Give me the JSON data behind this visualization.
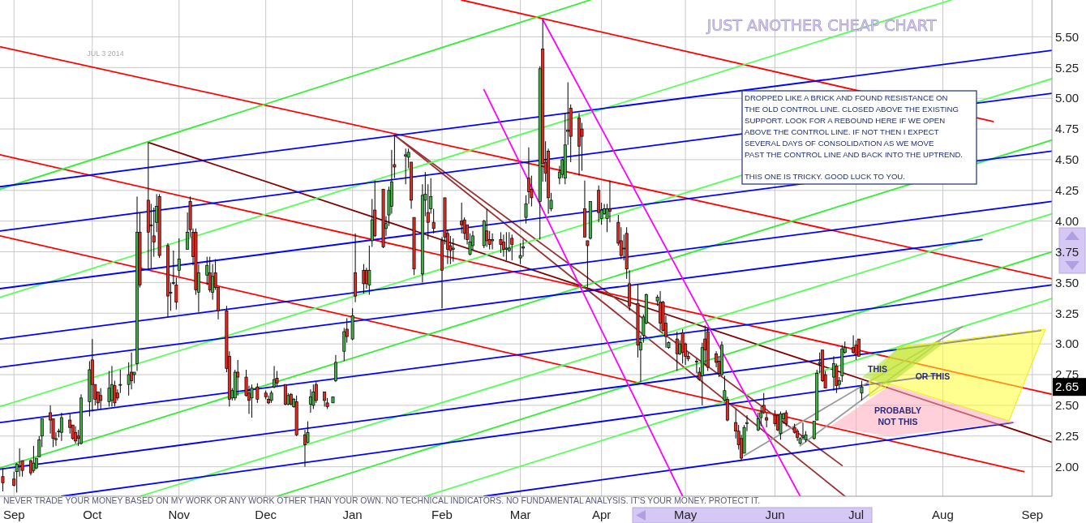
{
  "chart_data": {
    "type": "candlestick",
    "title": "JUST ANOTHER CHEAP CHART",
    "subtitle": "JUL 3 2014",
    "x": [
      "2013-08-30",
      "2013-09-03",
      "2013-09-04",
      "2013-09-05",
      "2013-09-06",
      "2013-09-09",
      "2013-09-10",
      "2013-09-11",
      "2013-09-12",
      "2013-09-13",
      "2013-09-16",
      "2013-09-17",
      "2013-09-18",
      "2013-09-19",
      "2013-09-20",
      "2013-09-23",
      "2013-09-24",
      "2013-09-25",
      "2013-09-26",
      "2013-09-27",
      "2013-09-30",
      "2013-10-01",
      "2013-10-02",
      "2013-10-03",
      "2013-10-04",
      "2013-10-07",
      "2013-10-08",
      "2013-10-09",
      "2013-10-10",
      "2013-10-11",
      "2013-10-14",
      "2013-10-15",
      "2013-10-16",
      "2013-10-17",
      "2013-10-18",
      "2013-10-21",
      "2013-10-22",
      "2013-10-23",
      "2013-10-24",
      "2013-10-25",
      "2013-10-28",
      "2013-10-29",
      "2013-10-30",
      "2013-10-31",
      "2013-11-01",
      "2013-11-04",
      "2013-11-05",
      "2013-11-06",
      "2013-11-07",
      "2013-11-08",
      "2013-11-11",
      "2013-11-12",
      "2013-11-13",
      "2013-11-14",
      "2013-11-15",
      "2013-11-18",
      "2013-11-19",
      "2013-11-20",
      "2013-11-21",
      "2013-11-22",
      "2013-11-25",
      "2013-11-26",
      "2013-11-27",
      "2013-11-29",
      "2013-12-02",
      "2013-12-03",
      "2013-12-04",
      "2013-12-05",
      "2013-12-06",
      "2013-12-09",
      "2013-12-10",
      "2013-12-11",
      "2013-12-12",
      "2013-12-13",
      "2013-12-16",
      "2013-12-17",
      "2013-12-18",
      "2013-12-19",
      "2013-12-20",
      "2013-12-23",
      "2013-12-24",
      "2013-12-26",
      "2013-12-27",
      "2013-12-30",
      "2013-12-31",
      "2014-01-02",
      "2014-01-03",
      "2014-01-06",
      "2014-01-07",
      "2014-01-08",
      "2014-01-09",
      "2014-01-10",
      "2014-01-13",
      "2014-01-14",
      "2014-01-15",
      "2014-01-16",
      "2014-01-17",
      "2014-01-21",
      "2014-01-22",
      "2014-01-23",
      "2014-01-24",
      "2014-01-27",
      "2014-01-28",
      "2014-01-29",
      "2014-01-30",
      "2014-01-31",
      "2014-02-03",
      "2014-02-04",
      "2014-02-05",
      "2014-02-06",
      "2014-02-07",
      "2014-02-10",
      "2014-02-11",
      "2014-02-12",
      "2014-02-13",
      "2014-02-14",
      "2014-02-18",
      "2014-02-19",
      "2014-02-20",
      "2014-02-21",
      "2014-02-24",
      "2014-02-25",
      "2014-02-26",
      "2014-02-27",
      "2014-02-28",
      "2014-03-03",
      "2014-03-04",
      "2014-03-05",
      "2014-03-06",
      "2014-03-07",
      "2014-03-10",
      "2014-03-11",
      "2014-03-12",
      "2014-03-13",
      "2014-03-14",
      "2014-03-17",
      "2014-03-18",
      "2014-03-19",
      "2014-03-20",
      "2014-03-21",
      "2014-03-24",
      "2014-03-25",
      "2014-03-26",
      "2014-03-27",
      "2014-03-28",
      "2014-03-31",
      "2014-04-01",
      "2014-04-02",
      "2014-04-03",
      "2014-04-04",
      "2014-04-07",
      "2014-04-08",
      "2014-04-09",
      "2014-04-10",
      "2014-04-11",
      "2014-04-14",
      "2014-04-15",
      "2014-04-16",
      "2014-04-17",
      "2014-04-21",
      "2014-04-22",
      "2014-04-23",
      "2014-04-24",
      "2014-04-25",
      "2014-04-28",
      "2014-04-29",
      "2014-04-30",
      "2014-05-01",
      "2014-05-02",
      "2014-05-05",
      "2014-05-06",
      "2014-05-07",
      "2014-05-08",
      "2014-05-09",
      "2014-05-12",
      "2014-05-13",
      "2014-05-14",
      "2014-05-15",
      "2014-05-16",
      "2014-05-19",
      "2014-05-20",
      "2014-05-21",
      "2014-05-22",
      "2014-05-23",
      "2014-05-27",
      "2014-05-28",
      "2014-05-29",
      "2014-05-30",
      "2014-06-02",
      "2014-06-03",
      "2014-06-04",
      "2014-06-05",
      "2014-06-06",
      "2014-06-09",
      "2014-06-10",
      "2014-06-11",
      "2014-06-12",
      "2014-06-13",
      "2014-06-16",
      "2014-06-17",
      "2014-06-18",
      "2014-06-19",
      "2014-06-20",
      "2014-06-23",
      "2014-06-24",
      "2014-06-25",
      "2014-06-26",
      "2014-06-27",
      "2014-06-30",
      "2014-07-01",
      "2014-07-02",
      "2014-07-03"
    ],
    "ohlc": [
      [
        1.92,
        1.99,
        1.8,
        1.87
      ],
      [
        1.9,
        1.96,
        1.84,
        1.85
      ],
      [
        1.96,
        2.03,
        1.79,
        2.02
      ],
      [
        2.0,
        2.15,
        1.92,
        2.01
      ],
      [
        2.05,
        2.05,
        1.92,
        1.97
      ],
      [
        2.05,
        2.06,
        1.93,
        1.95
      ],
      [
        1.97,
        2.17,
        1.95,
        2.03
      ],
      [
        1.99,
        2.07,
        1.98,
        2.07
      ],
      [
        2.08,
        2.25,
        2.08,
        2.22
      ],
      [
        2.25,
        2.39,
        2.16,
        2.39
      ],
      [
        2.44,
        2.5,
        2.27,
        2.38
      ],
      [
        2.39,
        2.39,
        2.16,
        2.23
      ],
      [
        2.22,
        2.28,
        2.17,
        2.23
      ],
      [
        2.29,
        2.31,
        2.24,
        2.29
      ],
      [
        2.28,
        2.44,
        2.21,
        2.4
      ],
      [
        2.38,
        2.43,
        2.27,
        2.32
      ],
      [
        2.34,
        2.34,
        2.22,
        2.23
      ],
      [
        2.28,
        2.33,
        2.19,
        2.21
      ],
      [
        2.25,
        2.3,
        2.17,
        2.23
      ],
      [
        2.19,
        2.59,
        2.18,
        2.56
      ],
      [
        2.53,
        2.86,
        2.41,
        2.79
      ],
      [
        2.87,
        3.04,
        2.45,
        2.67
      ],
      [
        2.67,
        2.67,
        2.5,
        2.55
      ],
      [
        2.61,
        2.61,
        2.47,
        2.52
      ],
      [
        2.58,
        2.64,
        2.47,
        2.54
      ],
      [
        2.53,
        2.78,
        2.49,
        2.64
      ],
      [
        2.54,
        2.82,
        2.49,
        2.67
      ],
      [
        2.66,
        2.7,
        2.49,
        2.52
      ],
      [
        2.6,
        2.63,
        2.54,
        2.56
      ],
      [
        2.67,
        2.79,
        2.6,
        2.67
      ],
      [
        2.67,
        2.85,
        2.58,
        2.75
      ],
      [
        2.77,
        2.93,
        2.63,
        2.7
      ],
      [
        2.75,
        2.77,
        2.68,
        2.77
      ],
      [
        2.84,
        4.2,
        2.78,
        3.91
      ],
      [
        3.91,
        4.07,
        3.46,
        3.48
      ],
      [
        4.17,
        4.64,
        3.61,
        3.91
      ],
      [
        3.97,
        4.14,
        3.61,
        3.96
      ],
      [
        3.88,
        4.11,
        3.71,
        3.83
      ],
      [
        3.99,
        4.22,
        3.91,
        4.12
      ],
      [
        4.2,
        4.22,
        3.7,
        3.72
      ],
      [
        3.8,
        3.82,
        3.22,
        3.39
      ],
      [
        3.42,
        3.5,
        3.27,
        3.42
      ],
      [
        3.5,
        3.76,
        3.48,
        3.5
      ],
      [
        3.48,
        3.54,
        3.28,
        3.34
      ],
      [
        3.6,
        3.86,
        3.55,
        3.69
      ],
      [
        3.77,
        4.07,
        3.77,
        3.91
      ],
      [
        4.16,
        4.2,
        3.87,
        3.93
      ],
      [
        3.91,
        3.94,
        3.64,
        3.71
      ],
      [
        3.91,
        3.94,
        3.4,
        3.44
      ],
      [
        3.42,
        3.65,
        3.26,
        3.58
      ],
      [
        3.56,
        3.71,
        3.48,
        3.64
      ],
      [
        3.58,
        3.71,
        3.42,
        3.44
      ],
      [
        3.42,
        3.65,
        3.36,
        3.55
      ],
      [
        3.58,
        3.69,
        3.44,
        3.46
      ],
      [
        3.46,
        3.46,
        3.2,
        3.27
      ],
      [
        3.27,
        3.31,
        2.77,
        2.8
      ],
      [
        2.9,
        2.94,
        2.49,
        2.55
      ],
      [
        2.56,
        2.64,
        2.54,
        2.62
      ],
      [
        2.56,
        2.79,
        2.54,
        2.77
      ],
      [
        2.77,
        2.87,
        2.58,
        2.73
      ],
      [
        2.73,
        2.79,
        2.57,
        2.58
      ],
      [
        2.6,
        2.66,
        2.43,
        2.54
      ],
      [
        2.56,
        2.67,
        2.4,
        2.64
      ],
      [
        2.65,
        2.68,
        2.52,
        2.55
      ],
      [
        2.6,
        2.62,
        2.55,
        2.57
      ],
      [
        2.55,
        2.58,
        2.51,
        2.52
      ],
      [
        2.54,
        2.62,
        2.52,
        2.6
      ],
      [
        2.65,
        2.82,
        2.64,
        2.71
      ],
      [
        2.72,
        2.78,
        2.65,
        2.68
      ],
      [
        2.67,
        2.67,
        2.5,
        2.51
      ],
      [
        2.51,
        2.6,
        2.5,
        2.58
      ],
      [
        2.59,
        2.6,
        2.5,
        2.51
      ],
      [
        2.49,
        2.56,
        2.48,
        2.55
      ],
      [
        2.53,
        2.58,
        2.25,
        2.26
      ],
      [
        2.26,
        2.3,
        2.0,
        2.18
      ],
      [
        2.2,
        2.37,
        2.19,
        2.28
      ],
      [
        2.51,
        2.63,
        2.44,
        2.57
      ],
      [
        2.5,
        2.67,
        2.47,
        2.61
      ],
      [
        2.67,
        2.69,
        2.52,
        2.54
      ],
      [
        2.61,
        2.61,
        2.49,
        2.54
      ],
      [
        2.52,
        2.56,
        2.47,
        2.49
      ],
      [
        2.52,
        2.57,
        2.52,
        2.57
      ],
      [
        2.7,
        2.91,
        2.69,
        2.85
      ],
      [
        2.94,
        3.13,
        2.86,
        3.1
      ],
      [
        3.12,
        3.21,
        3.01,
        3.06
      ],
      [
        3.04,
        3.29,
        3.03,
        3.23
      ],
      [
        3.58,
        3.9,
        3.34,
        3.39
      ],
      [
        3.6,
        3.65,
        3.41,
        3.49
      ],
      [
        3.6,
        3.62,
        3.45,
        3.49
      ],
      [
        3.48,
        3.8,
        3.4,
        3.6
      ],
      [
        3.84,
        4.18,
        3.79,
        4.01
      ],
      [
        4.09,
        4.33,
        3.87,
        3.88
      ],
      [
        4.26,
        4.26,
        3.78,
        3.79
      ],
      [
        3.94,
        4.04,
        3.88,
        3.98
      ],
      [
        4.05,
        4.28,
        3.96,
        4.25
      ],
      [
        4.12,
        4.58,
        4.06,
        4.32
      ],
      [
        4.46,
        4.7,
        4.35,
        4.44
      ],
      [
        4.53,
        4.59,
        4.3,
        4.54
      ],
      [
        4.52,
        4.59,
        4.43,
        4.56
      ],
      [
        4.48,
        4.48,
        4.1,
        4.17
      ],
      [
        4.03,
        4.03,
        3.56,
        3.61
      ],
      [
        3.57,
        4.3,
        3.5,
        4.21
      ],
      [
        4.17,
        4.4,
        4.04,
        4.22
      ],
      [
        4.07,
        4.3,
        3.85,
        3.99
      ],
      [
        4.1,
        4.35,
        4.06,
        4.2
      ],
      [
        3.99,
        4.1,
        3.9,
        3.94
      ],
      [
        3.84,
        3.87,
        3.29,
        3.6
      ],
      [
        4.19,
        4.19,
        3.81,
        3.87
      ],
      [
        3.9,
        3.93,
        3.65,
        3.77
      ],
      [
        3.8,
        3.88,
        3.65,
        3.76
      ],
      [
        3.77,
        3.86,
        3.67,
        3.78
      ],
      [
        4.0,
        4.15,
        3.9,
        3.97
      ],
      [
        4.01,
        4.03,
        3.85,
        3.9
      ],
      [
        3.97,
        3.97,
        3.81,
        3.85
      ],
      [
        3.73,
        3.9,
        3.72,
        3.83
      ],
      [
        3.8,
        3.92,
        3.76,
        3.88
      ],
      [
        3.8,
        4.01,
        3.78,
        4.0
      ],
      [
        3.92,
        4.1,
        3.79,
        3.84
      ],
      [
        3.85,
        3.92,
        3.77,
        3.81
      ],
      [
        3.84,
        3.9,
        3.77,
        3.85
      ],
      [
        3.85,
        3.91,
        3.74,
        3.81
      ],
      [
        3.83,
        3.89,
        3.71,
        3.77
      ],
      [
        3.77,
        3.91,
        3.68,
        3.78
      ],
      [
        3.76,
        3.91,
        3.75,
        3.78
      ],
      [
        3.86,
        3.89,
        3.68,
        3.81
      ],
      [
        3.7,
        3.82,
        3.65,
        3.72
      ],
      [
        3.78,
        3.85,
        3.71,
        3.79
      ],
      [
        4.03,
        4.21,
        3.98,
        4.14
      ],
      [
        4.35,
        4.6,
        4.14,
        4.24
      ],
      [
        4.26,
        4.37,
        4.12,
        4.19
      ],
      [
        4.16,
        5.26,
        3.85,
        5.24
      ],
      [
        5.4,
        5.64,
        4.32,
        4.47
      ],
      [
        4.48,
        4.65,
        4.32,
        4.39
      ],
      [
        4.57,
        4.59,
        4.06,
        4.19
      ],
      [
        4.1,
        4.23,
        4.08,
        4.17
      ],
      [
        4.35,
        4.45,
        4.3,
        4.4
      ],
      [
        4.38,
        4.51,
        4.35,
        4.5
      ],
      [
        4.35,
        4.88,
        4.3,
        4.62
      ],
      [
        4.73,
        5.13,
        4.62,
        4.74
      ],
      [
        4.92,
        4.95,
        4.48,
        4.69
      ],
      [
        4.84,
        4.88,
        4.37,
        4.61
      ],
      [
        4.75,
        4.8,
        4.41,
        4.69
      ],
      [
        4.1,
        4.33,
        3.87,
        3.87
      ],
      [
        3.84,
        3.84,
        3.46,
        3.8
      ],
      [
        3.86,
        4.16,
        3.85,
        4.16
      ],
      [
        4.25,
        4.29,
        3.99,
        4.07
      ],
      [
        4.02,
        4.15,
        3.97,
        4.09
      ],
      [
        4.06,
        4.14,
        4.05,
        4.1
      ],
      [
        4.02,
        4.14,
        3.91,
        4.1
      ],
      [
        4.1,
        4.33,
        3.99,
        4.08
      ],
      [
        3.99,
        4.05,
        3.8,
        3.82
      ],
      [
        3.84,
        3.95,
        3.69,
        3.72
      ],
      [
        3.78,
        3.89,
        3.68,
        3.78
      ],
      [
        3.9,
        3.95,
        3.53,
        3.61
      ],
      [
        3.49,
        3.6,
        3.27,
        3.31
      ],
      [
        3.33,
        3.49,
        2.89,
        2.99
      ],
      [
        2.95,
        3.07,
        2.69,
        3.01
      ],
      [
        3.07,
        3.24,
        3.01,
        3.22
      ],
      [
        3.17,
        3.41,
        3.16,
        3.4
      ],
      [
        3.35,
        3.4,
        3.31,
        3.38
      ],
      [
        3.34,
        3.43,
        3.11,
        3.17
      ],
      [
        3.34,
        3.35,
        3.1,
        3.11
      ],
      [
        3.17,
        3.23,
        2.97,
        3.06
      ],
      [
        2.97,
        3.02,
        2.96,
        3.01
      ],
      [
        3.04,
        3.1,
        2.78,
        2.92
      ],
      [
        2.92,
        3.03,
        2.91,
        3.0
      ],
      [
        3.09,
        3.12,
        2.84,
        2.93
      ],
      [
        3.0,
        3.01,
        2.83,
        2.9
      ],
      [
        2.9,
        2.93,
        2.86,
        2.88
      ],
      [
        2.86,
        2.88,
        2.76,
        2.86
      ],
      [
        2.77,
        2.81,
        2.7,
        2.71
      ],
      [
        2.74,
        3.01,
        2.5,
        2.97
      ],
      [
        3.04,
        3.15,
        2.82,
        2.95
      ],
      [
        3.1,
        3.13,
        2.78,
        2.81
      ],
      [
        2.92,
        2.94,
        2.81,
        2.85
      ],
      [
        2.86,
        2.9,
        2.73,
        2.76
      ],
      [
        2.75,
        3.02,
        2.74,
        2.99
      ],
      [
        2.54,
        2.74,
        2.53,
        2.62
      ],
      [
        2.55,
        2.57,
        2.37,
        2.38
      ],
      [
        2.36,
        2.47,
        2.23,
        2.29
      ],
      [
        2.29,
        2.34,
        2.14,
        2.18
      ],
      [
        2.23,
        2.26,
        2.05,
        2.07
      ],
      [
        2.11,
        2.34,
        2.11,
        2.32
      ],
      [
        2.35,
        2.42,
        2.29,
        2.36
      ],
      [
        2.3,
        2.44,
        2.29,
        2.39
      ],
      [
        2.4,
        2.49,
        2.33,
        2.44
      ],
      [
        2.5,
        2.6,
        2.43,
        2.44
      ],
      [
        2.4,
        2.44,
        2.32,
        2.38
      ],
      [
        2.42,
        2.46,
        2.33,
        2.35
      ],
      [
        2.42,
        2.43,
        2.29,
        2.3
      ],
      [
        2.27,
        2.45,
        2.22,
        2.43
      ],
      [
        2.39,
        2.44,
        2.35,
        2.43
      ],
      [
        2.44,
        2.46,
        2.33,
        2.35
      ],
      [
        2.32,
        2.35,
        2.27,
        2.28
      ],
      [
        2.29,
        2.31,
        2.21,
        2.24
      ],
      [
        2.19,
        2.24,
        2.18,
        2.23
      ],
      [
        2.24,
        2.36,
        2.22,
        2.25
      ],
      [
        2.22,
        2.29,
        2.2,
        2.26
      ],
      [
        2.23,
        2.37,
        2.22,
        2.37
      ],
      [
        2.38,
        2.79,
        2.38,
        2.76
      ],
      [
        2.84,
        2.93,
        2.76,
        2.85
      ],
      [
        2.95,
        2.95,
        2.69,
        2.7
      ],
      [
        2.75,
        2.78,
        2.64,
        2.64
      ],
      [
        2.73,
        2.9,
        2.62,
        2.84
      ],
      [
        2.82,
        2.84,
        2.6,
        2.66
      ],
      [
        2.67,
        2.73,
        2.64,
        2.7
      ],
      [
        2.74,
        2.99,
        2.69,
        2.96
      ],
      [
        2.93,
        3.02,
        2.92,
        2.97
      ],
      [
        2.97,
        3.07,
        2.92,
        2.93
      ],
      [
        2.99,
        3.03,
        2.87,
        2.91
      ],
      [
        3.04,
        3.04,
        2.9,
        2.9
      ],
      [
        2.6,
        2.7,
        2.54,
        2.65
      ]
    ],
    "series": [
      {
        "type": "line",
        "color": "#ff0000",
        "x": [
          "2013-08-29",
          "2014-09-09"
        ],
        "values": [
          5.42,
          3.53
        ]
      },
      {
        "type": "line",
        "color": "#ff0000",
        "x": [
          "2014-02-10",
          "2014-08-19"
        ],
        "values": [
          5.8,
          4.81
        ]
      },
      {
        "type": "line",
        "color": "#ff0000",
        "x": [
          "2013-08-29",
          "2014-09-09"
        ],
        "values": [
          4.54,
          2.59
        ]
      },
      {
        "type": "line",
        "color": "#ff0000",
        "x": [
          "2013-08-29",
          "2014-08-30"
        ],
        "values": [
          3.88,
          1.96
        ]
      },
      {
        "type": "line",
        "color": "#800000",
        "x": [
          "2013-10-21",
          "2014-09-09"
        ],
        "values": [
          4.64,
          2.2
        ]
      },
      {
        "type": "line",
        "color": "#993333",
        "x": [
          "2014-01-17",
          "2014-06-26"
        ],
        "values": [
          4.7,
          2.01
        ]
      },
      {
        "type": "line",
        "color": "#993333",
        "x": [
          "2014-01-17",
          "2014-06-27"
        ],
        "values": [
          4.7,
          1.76
        ]
      },
      {
        "type": "line",
        "color": "#33ee33",
        "x": [
          "2013-08-29",
          "2014-03-28"
        ],
        "values": [
          4.26,
          5.8
        ]
      },
      {
        "type": "line",
        "color": "#33ee33",
        "x": [
          "2013-08-29",
          "2014-09-09"
        ],
        "values": [
          1.99,
          4.66
        ]
      },
      {
        "type": "line",
        "color": "#33ee33",
        "x": [
          "2013-12-06",
          "2014-09-09"
        ],
        "values": [
          1.76,
          3.75
        ]
      },
      {
        "type": "line",
        "color": "#55ff55",
        "x": [
          "2013-08-29",
          "2014-08-04"
        ],
        "values": [
          3.38,
          5.8
        ]
      },
      {
        "type": "line",
        "color": "#55ff55",
        "x": [
          "2013-08-29",
          "2014-09-09"
        ],
        "values": [
          2.49,
          5.16
        ]
      },
      {
        "type": "line",
        "color": "#55ff55",
        "x": [
          "2013-10-18",
          "2014-09-09"
        ],
        "values": [
          1.76,
          4.06
        ]
      },
      {
        "type": "line",
        "color": "#55ff55",
        "x": [
          "2014-01-28",
          "2014-09-09"
        ],
        "values": [
          1.76,
          3.37
        ]
      },
      {
        "type": "line",
        "color": "#0000ff",
        "x": [
          "2013-08-29",
          "2014-09-09"
        ],
        "values": [
          4.28,
          5.39
        ]
      },
      {
        "type": "line",
        "color": "#0000ff",
        "x": [
          "2013-08-29",
          "2014-09-09"
        ],
        "values": [
          3.92,
          5.04
        ]
      },
      {
        "type": "line",
        "color": "#0000ff",
        "x": [
          "2013-08-29",
          "2014-09-09"
        ],
        "values": [
          3.45,
          4.57
        ]
      },
      {
        "type": "line",
        "color": "#0000ff",
        "x": [
          "2013-08-29",
          "2014-09-09"
        ],
        "values": [
          3.04,
          4.16
        ]
      },
      {
        "type": "line",
        "color": "#0000ff",
        "x": [
          "2013-08-29",
          "2014-08-15"
        ],
        "values": [
          2.81,
          3.85
        ]
      },
      {
        "type": "line",
        "color": "#0000ff",
        "x": [
          "2013-08-29",
          "2014-09-09"
        ],
        "values": [
          2.36,
          3.48
        ]
      },
      {
        "type": "line",
        "color": "#0000ff",
        "x": [
          "2013-09-20",
          "2014-07-31"
        ],
        "values": [
          1.76,
          2.75
        ]
      },
      {
        "type": "line",
        "color": "#0000ee",
        "x": [
          "2013-08-29",
          "2014-09-05"
        ],
        "values": [
          1.98,
          3.11
        ]
      },
      {
        "type": "line",
        "color": "#0000ee",
        "x": [
          "2014-02-18",
          "2014-08-26"
        ],
        "values": [
          1.76,
          2.36
        ]
      },
      {
        "type": "line",
        "color": "#ff00ff",
        "x": [
          "2014-02-18",
          "2014-04-30"
        ],
        "values": [
          5.07,
          1.76
        ]
      },
      {
        "type": "line",
        "color": "#ff00ff",
        "x": [
          "2014-03-11",
          "2014-06-11"
        ],
        "values": [
          5.64,
          1.76
        ]
      },
      {
        "type": "line",
        "color": "#999999",
        "x": [
          "2014-05-22",
          "2014-08-08"
        ],
        "values": [
          2.09,
          3.14
        ]
      },
      {
        "type": "line",
        "color": "#999999",
        "x": [
          "2014-06-11",
          "2014-07-31"
        ],
        "values": [
          2.17,
          3.02
        ]
      }
    ],
    "xlim": [
      "2013-08-29",
      "2014-09-09"
    ],
    "xticks": [
      {
        "value": "2013-09-03",
        "label": "Sep"
      },
      {
        "value": "2013-10-01",
        "label": "Oct"
      },
      {
        "value": "2013-11-01",
        "label": "Nov"
      },
      {
        "value": "2013-12-02",
        "label": "Dec"
      },
      {
        "value": "2014-01-02",
        "label": "Jan"
      },
      {
        "value": "2014-02-03",
        "label": "Feb"
      },
      {
        "value": "2014-03-03",
        "label": "Mar"
      },
      {
        "value": "2014-04-01",
        "label": "Apr"
      },
      {
        "value": "2014-05-01",
        "label": "May"
      },
      {
        "value": "2014-06-02",
        "label": "Jun"
      },
      {
        "value": "2014-07-01",
        "label": "Jul"
      },
      {
        "value": "2014-08-01",
        "label": "Aug"
      },
      {
        "value": "2014-09-02",
        "label": "Sep"
      }
    ],
    "ylim": [
      1.76,
      5.8
    ],
    "yticks": [
      {
        "value": 2,
        "label": "2.00"
      },
      {
        "value": 2.25,
        "label": "2.25"
      },
      {
        "value": 2.5,
        "label": "2.50"
      },
      {
        "value": 2.75,
        "label": "2.75"
      },
      {
        "value": 3,
        "label": "3.00"
      },
      {
        "value": 3.25,
        "label": "3.25"
      },
      {
        "value": 3.5,
        "label": "3.50"
      },
      {
        "value": 3.75,
        "label": "3.75"
      },
      {
        "value": 4,
        "label": "4.00"
      },
      {
        "value": 4.25,
        "label": "4.25"
      },
      {
        "value": 4.5,
        "label": "4.50"
      },
      {
        "value": 4.75,
        "label": "4.75"
      },
      {
        "value": 5,
        "label": "5.00"
      },
      {
        "value": 5.25,
        "label": "5.25"
      },
      {
        "value": 5.5,
        "label": "5.50"
      }
    ],
    "grid": true,
    "annotations": [
      "DROPPED LIKE A BRICK AND FOUND RESISTANCE ON\nTHE OLD CONTROL LINE. CLOSED ABOVE THE EXISTING\nSUPPORT. LOOK FOR A REBOUND HERE IF WE OPEN\nABOVE THE CONTROL LINE. IF NOT THEN I EXPECT\nSEVERAL DAYS OF CONSOLIDATION AS WE MOVE\nPAST THE CONTROL LINE AND BACK INTO THE UPTREND.\n\nTHIS ONE IS TRICKY. GOOD LUCK TO YOU.",
      "NEVER TRADE YOUR MONEY BASED ON MY WORK OR ANY WORK OTHER THAN YOUR OWN. NO TECHNICAL INDICATORS. NO FUNDAMENTAL ANALYSIS. IT'S YOUR MONEY. PROTECT IT.",
      "THIS",
      "OR THIS",
      "PROBABLY\nNOT THIS",
      "2.65"
    ]
  }
}
